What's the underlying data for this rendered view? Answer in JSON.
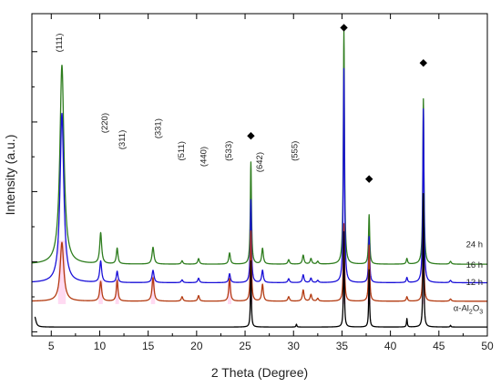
{
  "chart_data": {
    "type": "line",
    "xlabel": "2 Theta (Degree)",
    "ylabel": "Intensity (a.u.)",
    "xlim": [
      3,
      50
    ],
    "xticks": [
      5,
      10,
      15,
      20,
      25,
      30,
      35,
      40,
      45,
      50
    ],
    "grid": false,
    "legend": "none",
    "series": [
      {
        "name": "24 h",
        "color": "#2e7d1e",
        "baseline": 0.78,
        "peaks": [
          [
            6.1,
            3.55,
            0.25
          ],
          [
            10.1,
            0.55,
            0.12
          ],
          [
            11.8,
            0.28,
            0.1
          ],
          [
            15.5,
            0.3,
            0.12
          ],
          [
            18.5,
            0.06,
            0.1
          ],
          [
            20.2,
            0.1,
            0.1
          ],
          [
            23.4,
            0.2,
            0.1
          ],
          [
            25.6,
            1.82,
            0.07
          ],
          [
            26.8,
            0.28,
            0.1
          ],
          [
            29.5,
            0.08,
            0.1
          ],
          [
            31.0,
            0.16,
            0.1
          ],
          [
            31.8,
            0.1,
            0.1
          ],
          [
            32.5,
            0.05,
            0.1
          ],
          [
            35.2,
            4.16,
            0.07
          ],
          [
            37.8,
            0.88,
            0.07
          ],
          [
            41.7,
            0.1,
            0.08
          ],
          [
            43.4,
            2.95,
            0.07
          ],
          [
            46.2,
            0.05,
            0.1
          ]
        ]
      },
      {
        "name": "16 h",
        "color": "#1a10d8",
        "baseline": 0.45,
        "peaks": [
          [
            6.1,
            3.02,
            0.23
          ],
          [
            10.1,
            0.38,
            0.12
          ],
          [
            11.8,
            0.2,
            0.1
          ],
          [
            15.5,
            0.22,
            0.12
          ],
          [
            18.5,
            0.05,
            0.1
          ],
          [
            20.2,
            0.08,
            0.1
          ],
          [
            23.4,
            0.16,
            0.1
          ],
          [
            25.6,
            1.48,
            0.07
          ],
          [
            26.8,
            0.22,
            0.1
          ],
          [
            29.5,
            0.07,
            0.1
          ],
          [
            31.0,
            0.14,
            0.1
          ],
          [
            31.8,
            0.08,
            0.1
          ],
          [
            32.5,
            0.04,
            0.1
          ],
          [
            35.2,
            3.82,
            0.07
          ],
          [
            37.8,
            0.82,
            0.07
          ],
          [
            41.7,
            0.09,
            0.08
          ],
          [
            43.4,
            3.1,
            0.07
          ],
          [
            46.2,
            0.04,
            0.1
          ]
        ]
      },
      {
        "name": "12 h",
        "color": "#b33a10",
        "baseline": 0.12,
        "peaks": [
          [
            6.1,
            1.05,
            0.22
          ],
          [
            10.1,
            0.35,
            0.12
          ],
          [
            11.8,
            0.37,
            0.1
          ],
          [
            15.5,
            0.42,
            0.12
          ],
          [
            18.5,
            0.08,
            0.1
          ],
          [
            20.2,
            0.1,
            0.1
          ],
          [
            23.4,
            0.4,
            0.1
          ],
          [
            25.6,
            1.25,
            0.07
          ],
          [
            26.8,
            0.3,
            0.1
          ],
          [
            29.5,
            0.08,
            0.1
          ],
          [
            31.0,
            0.2,
            0.1
          ],
          [
            31.8,
            0.12,
            0.1
          ],
          [
            32.5,
            0.05,
            0.1
          ],
          [
            35.2,
            1.38,
            0.07
          ],
          [
            37.8,
            1.0,
            0.07
          ],
          [
            41.7,
            0.08,
            0.08
          ],
          [
            43.4,
            1.28,
            0.07
          ],
          [
            46.2,
            0.04,
            0.1
          ]
        ]
      },
      {
        "name": "α-Al2O3",
        "color": "#000000",
        "baseline": -0.34,
        "peaks": [
          [
            3.3,
            0.18,
            0.15
          ],
          [
            25.6,
            1.18,
            0.05
          ],
          [
            30.3,
            0.05,
            0.05
          ],
          [
            35.2,
            1.7,
            0.05
          ],
          [
            37.8,
            1.02,
            0.05
          ],
          [
            41.7,
            0.15,
            0.05
          ],
          [
            43.4,
            2.38,
            0.05
          ],
          [
            46.2,
            0.03,
            0.05
          ]
        ]
      }
    ],
    "series_labels": [
      {
        "text": "24 h",
        "x": 47.8,
        "y": 1.08
      },
      {
        "text": "16 h",
        "x": 47.8,
        "y": 0.72
      },
      {
        "text": "12 h",
        "x": 47.8,
        "y": 0.41
      },
      {
        "text": "α-Al",
        "sub1": "2",
        "mid": "O",
        "sub2": "3",
        "x": 46.5,
        "y": -0.05
      }
    ],
    "peak_labels": [
      {
        "text": "(111)",
        "x": 6.1,
        "y": 4.73
      },
      {
        "text": "(220)",
        "x": 10.8,
        "y": 3.3
      },
      {
        "text": "(311)",
        "x": 12.6,
        "y": 3.0
      },
      {
        "text": "(331)",
        "x": 16.3,
        "y": 3.2
      },
      {
        "text": "(511)",
        "x": 18.7,
        "y": 2.8
      },
      {
        "text": "(440)",
        "x": 21.0,
        "y": 2.7
      },
      {
        "text": "(533)",
        "x": 23.6,
        "y": 2.8
      },
      {
        "text": "(642)",
        "x": 26.8,
        "y": 2.6
      },
      {
        "text": "(555)",
        "x": 30.4,
        "y": 2.8
      }
    ],
    "markers": [
      {
        "x": 25.6,
        "y": 3.07
      },
      {
        "x": 35.2,
        "y": 5.0
      },
      {
        "x": 37.8,
        "y": 2.3
      },
      {
        "x": 43.4,
        "y": 4.37
      }
    ]
  },
  "style": {
    "highlight_color": "#ff7ad0",
    "axis_color": "#000000",
    "marker_shape": "diamond"
  }
}
